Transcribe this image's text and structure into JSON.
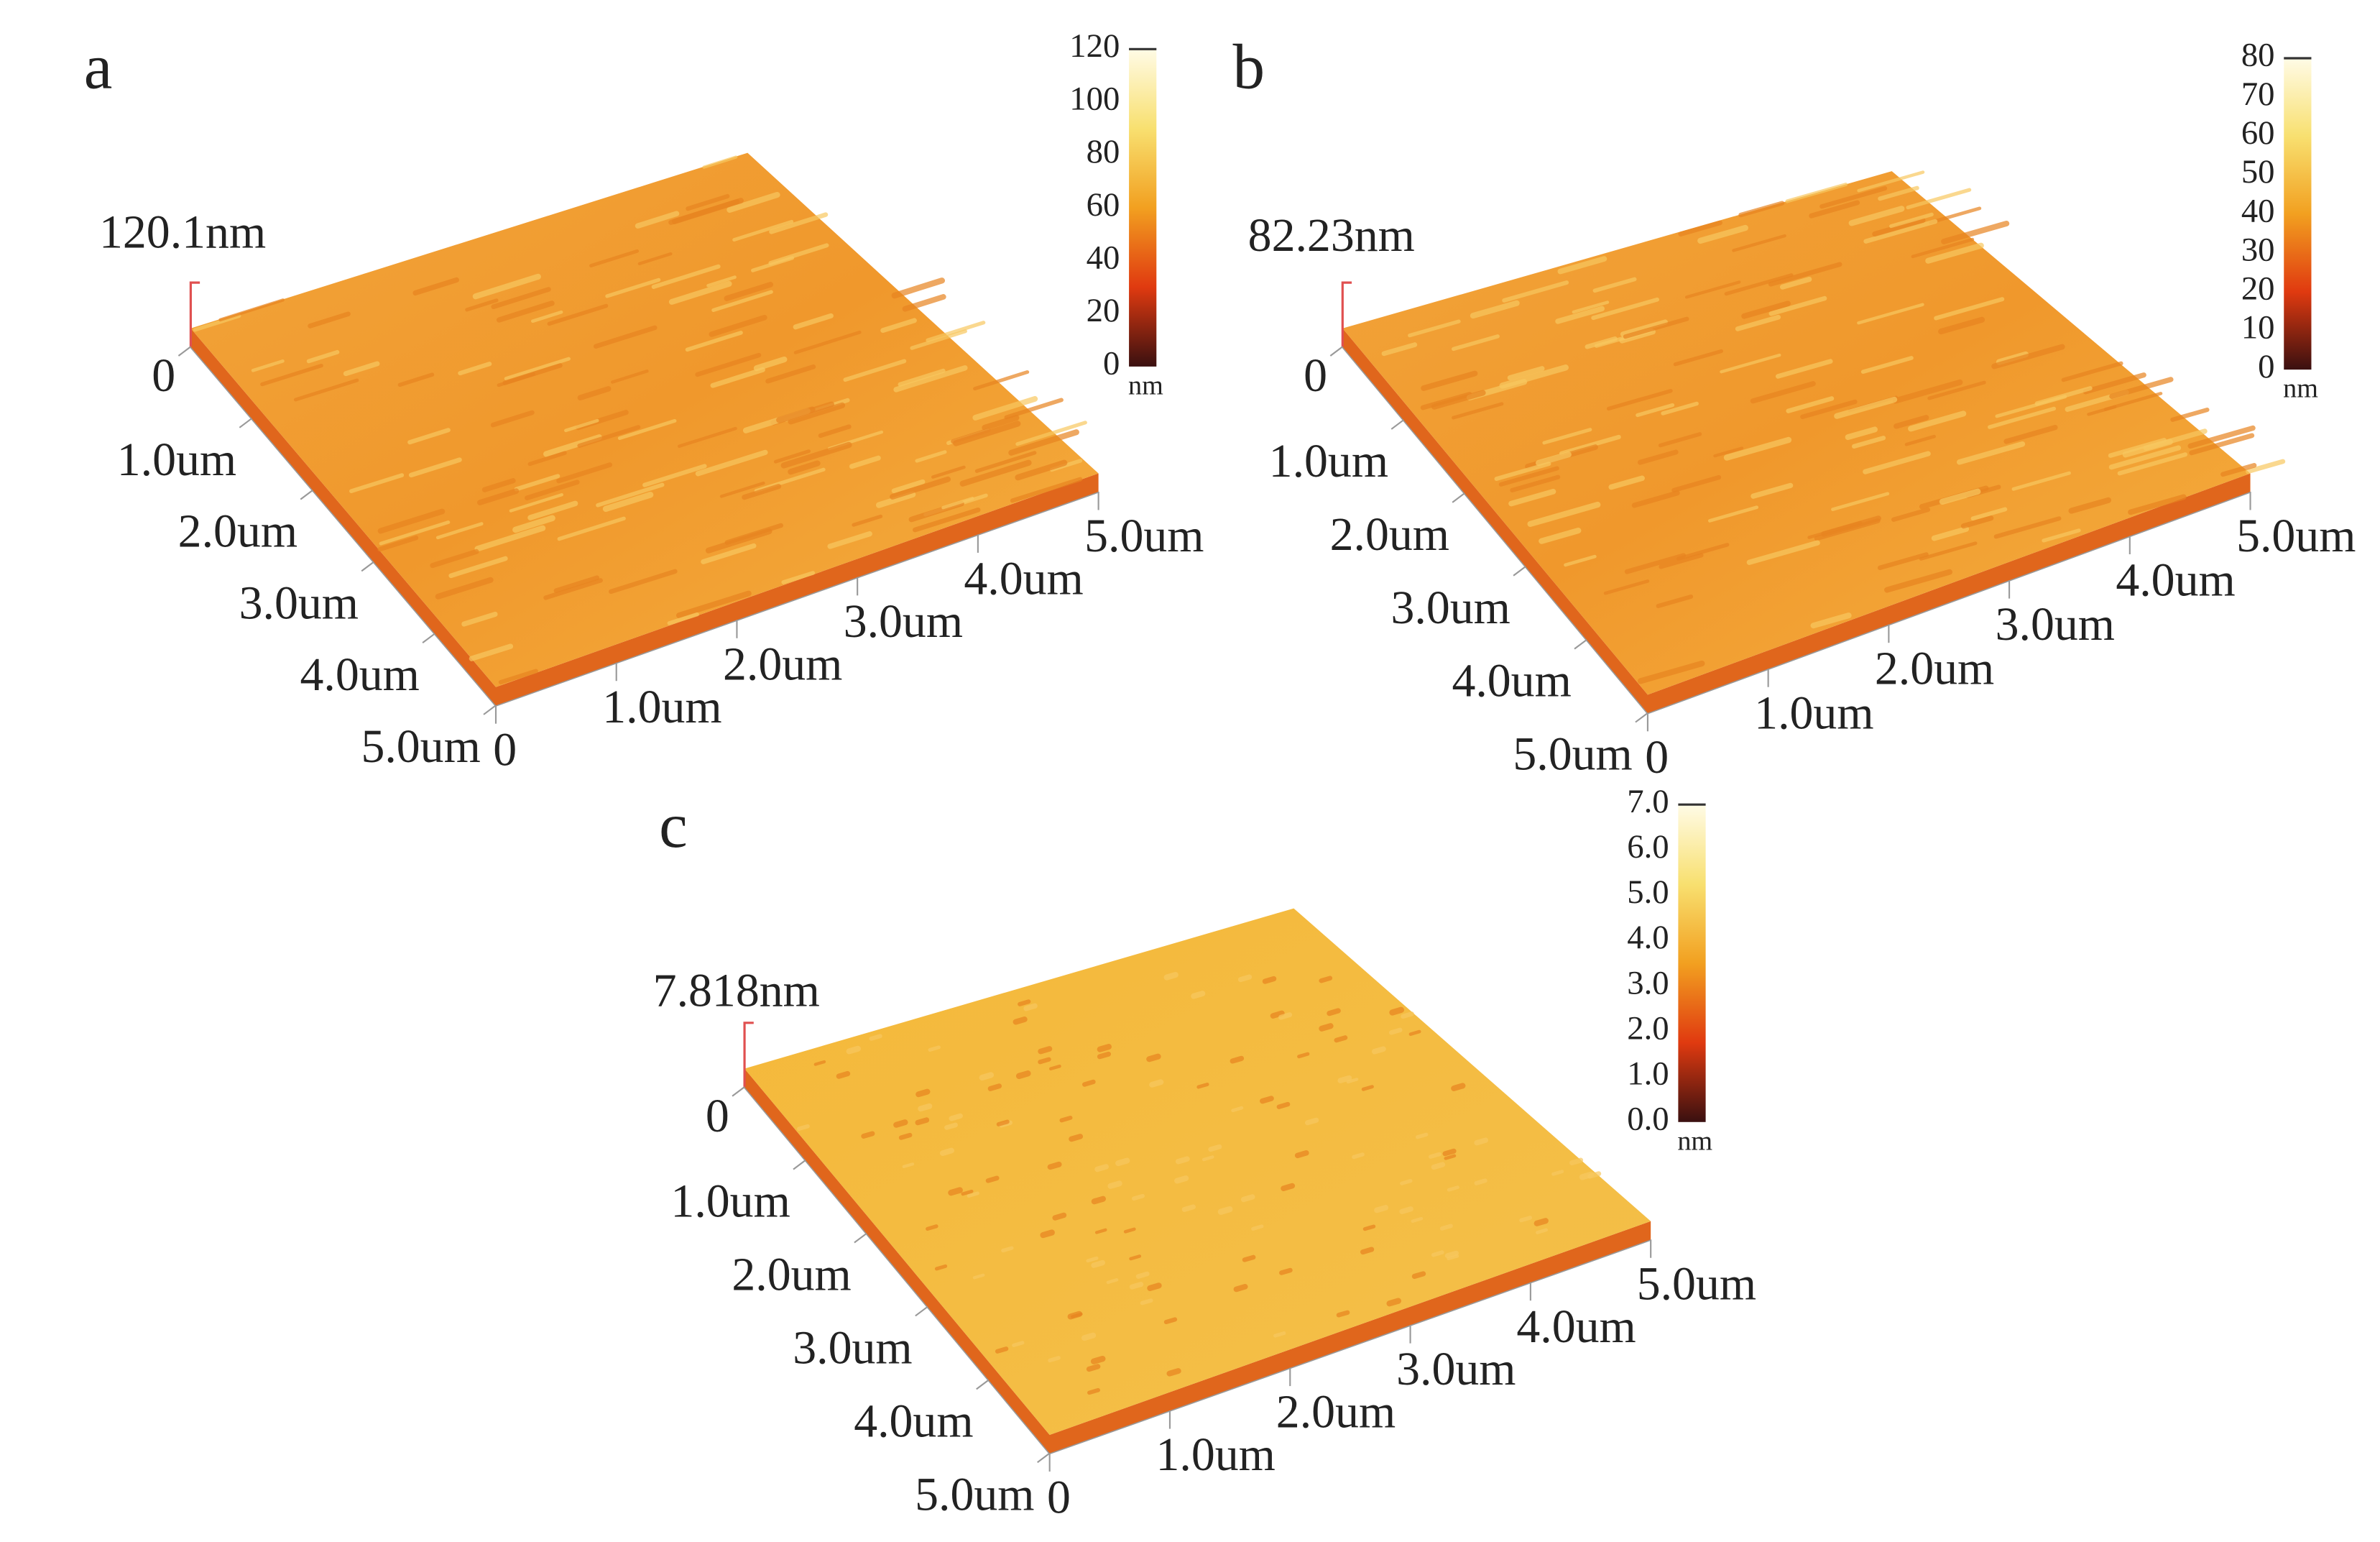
{
  "panels": [
    {
      "label": "a",
      "height": "120.1nm",
      "y_axis": [
        "0",
        "1.0um",
        "2.0um",
        "3.0um",
        "4.0um",
        "5.0um"
      ],
      "x_axis": [
        "0",
        "1.0um",
        "2.0um",
        "3.0um",
        "4.0um",
        "5.0um"
      ],
      "colorbar": {
        "ticks": [
          "120",
          "100",
          "80",
          "60",
          "40",
          "20",
          "0"
        ],
        "unit": "nm"
      }
    },
    {
      "label": "b",
      "height": "82.23nm",
      "y_axis": [
        "0",
        "1.0um",
        "2.0um",
        "3.0um",
        "4.0um",
        "5.0um"
      ],
      "x_axis": [
        "0",
        "1.0um",
        "2.0um",
        "3.0um",
        "4.0um",
        "5.0um"
      ],
      "colorbar": {
        "ticks": [
          "80",
          "70",
          "60",
          "50",
          "40",
          "30",
          "20",
          "10",
          "0"
        ],
        "unit": "nm"
      }
    },
    {
      "label": "c",
      "height": "7.818nm",
      "y_axis": [
        "0",
        "1.0um",
        "2.0um",
        "3.0um",
        "4.0um",
        "5.0um"
      ],
      "x_axis": [
        "0",
        "1.0um",
        "2.0um",
        "3.0um",
        "4.0um",
        "5.0um"
      ],
      "colorbar": {
        "ticks": [
          "7.0",
          "6.0",
          "5.0",
          "4.0",
          "3.0",
          "2.0",
          "1.0",
          "0.0"
        ],
        "unit": "nm"
      }
    }
  ]
}
